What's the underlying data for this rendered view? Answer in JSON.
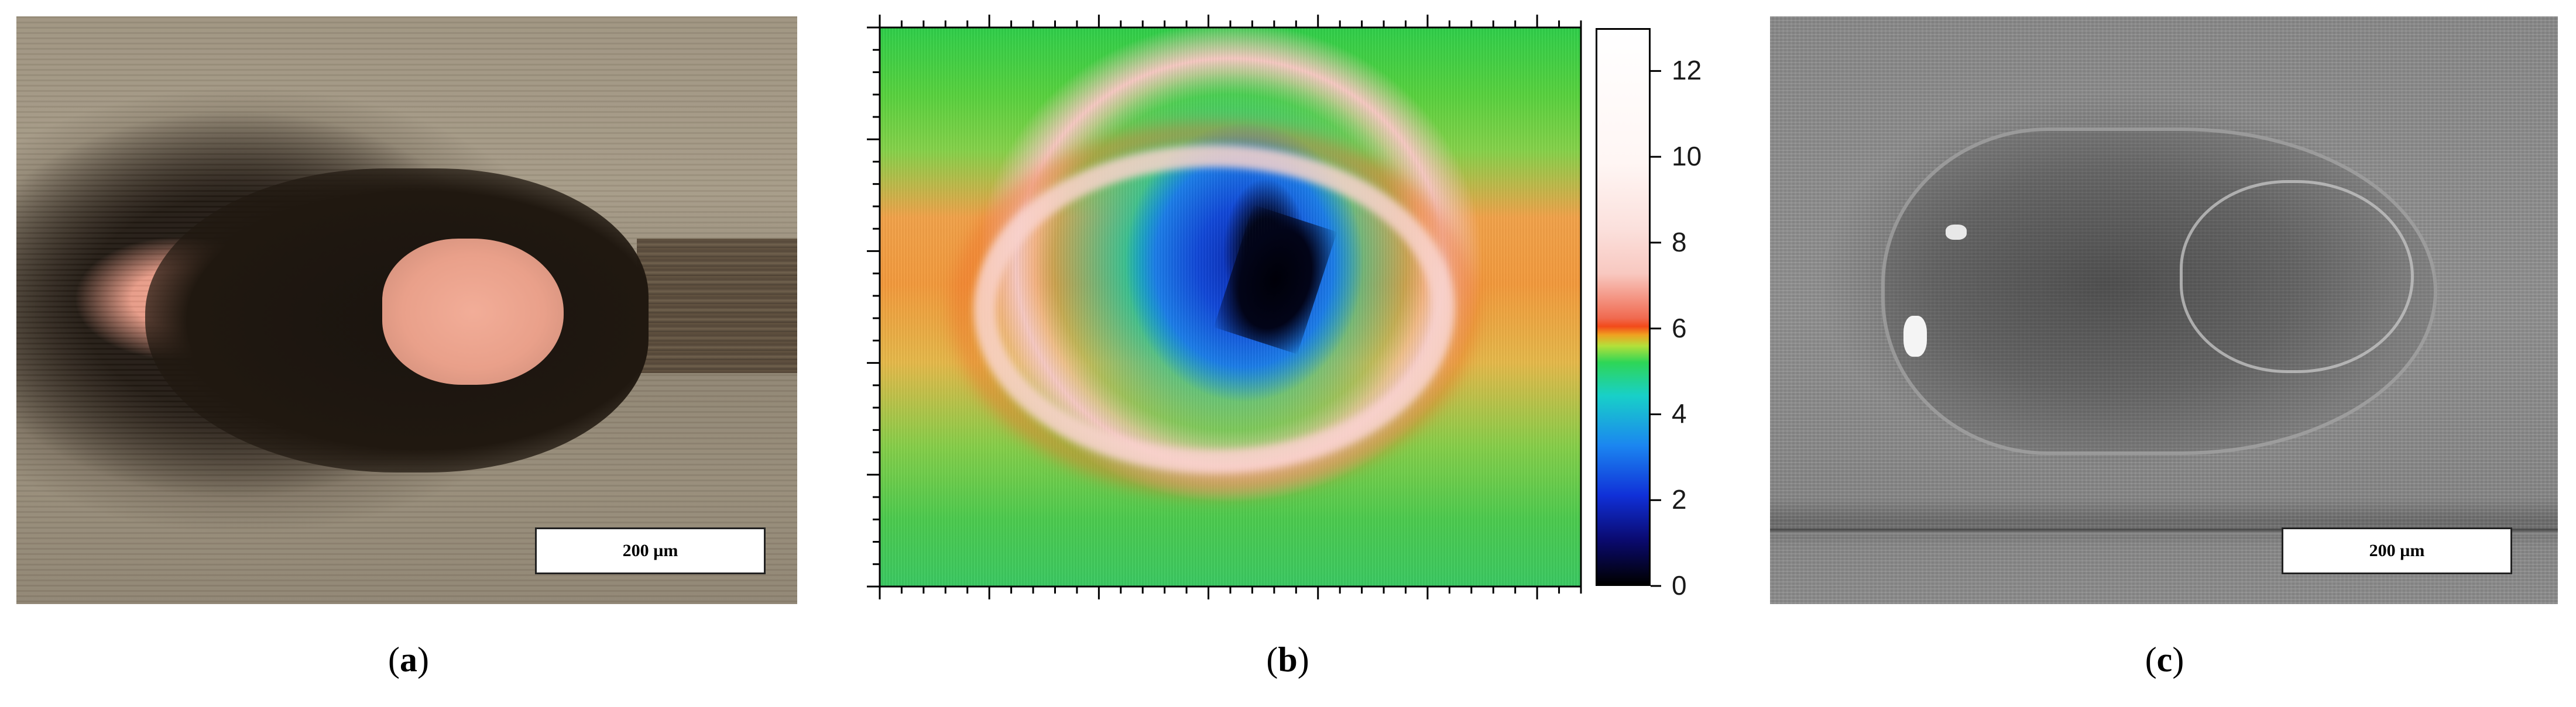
{
  "figure": {
    "panel_a": {
      "scale_bar_label": "200 µm",
      "caption": {
        "open": "(",
        "letter": "a",
        "close": ")"
      }
    },
    "panel_b": {
      "colorbar": {
        "ticks": [
          "0",
          "2",
          "4",
          "6",
          "8",
          "10",
          "12"
        ],
        "min": 0,
        "max": 13
      },
      "caption": {
        "open": "(",
        "letter": "b",
        "close": ")"
      }
    },
    "panel_c": {
      "scale_bar_label": "200 µm",
      "caption": {
        "open": "(",
        "letter": "c",
        "close": ")"
      }
    }
  }
}
